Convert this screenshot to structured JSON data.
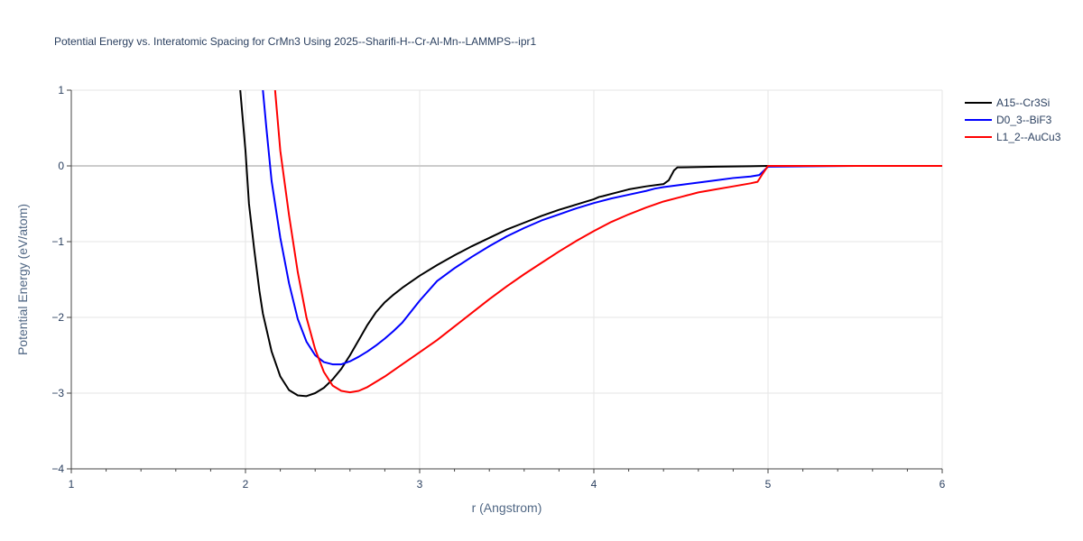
{
  "chart_data": {
    "type": "line",
    "title": "Potential Energy vs. Interatomic Spacing for CrMn3 Using 2025--Sharifi-H--Cr-Al-Mn--LAMMPS--ipr1",
    "xlabel": "r (Angstrom)",
    "ylabel": "Potential Energy (eV/atom)",
    "xlim": [
      1,
      6
    ],
    "ylim": [
      -4,
      1
    ],
    "xticks": [
      "1",
      "2",
      "3",
      "4",
      "5",
      "6"
    ],
    "yticks": [
      "1",
      "0",
      "−1",
      "−2",
      "−3",
      "−4"
    ],
    "grid": true,
    "legend_position": "top-right",
    "series": [
      {
        "name": "A15--Cr3Si",
        "color": "#000000",
        "x": [
          1.97,
          2.0,
          2.02,
          2.05,
          2.08,
          2.1,
          2.15,
          2.2,
          2.25,
          2.3,
          2.35,
          2.4,
          2.45,
          2.5,
          2.55,
          2.6,
          2.65,
          2.7,
          2.75,
          2.8,
          2.85,
          2.9,
          3.0,
          3.1,
          3.2,
          3.3,
          3.4,
          3.5,
          3.6,
          3.7,
          3.8,
          3.9,
          4.0,
          4.03,
          4.05,
          4.1,
          4.2,
          4.3,
          4.4,
          4.43,
          4.46,
          4.48,
          4.5,
          4.7,
          4.9,
          5.0,
          5.5,
          6.0
        ],
        "y": [
          1.0,
          0.2,
          -0.5,
          -1.1,
          -1.65,
          -1.95,
          -2.45,
          -2.78,
          -2.96,
          -3.03,
          -3.04,
          -3.0,
          -2.93,
          -2.82,
          -2.68,
          -2.5,
          -2.3,
          -2.1,
          -1.93,
          -1.8,
          -1.7,
          -1.61,
          -1.45,
          -1.31,
          -1.18,
          -1.06,
          -0.95,
          -0.84,
          -0.75,
          -0.66,
          -0.58,
          -0.51,
          -0.44,
          -0.41,
          -0.4,
          -0.37,
          -0.31,
          -0.27,
          -0.24,
          -0.19,
          -0.06,
          -0.02,
          -0.02,
          -0.01,
          -0.005,
          0.0,
          0.0,
          0.0
        ]
      },
      {
        "name": "D0_3--BiF3",
        "color": "#0000ff",
        "x": [
          2.1,
          2.12,
          2.15,
          2.2,
          2.25,
          2.3,
          2.35,
          2.4,
          2.45,
          2.5,
          2.55,
          2.6,
          2.65,
          2.7,
          2.75,
          2.8,
          2.85,
          2.9,
          3.0,
          3.1,
          3.2,
          3.3,
          3.4,
          3.5,
          3.6,
          3.7,
          3.8,
          3.9,
          4.0,
          4.1,
          4.2,
          4.3,
          4.35,
          4.4,
          4.5,
          4.6,
          4.7,
          4.8,
          4.9,
          4.95,
          5.0,
          5.5,
          6.0
        ],
        "y": [
          1.0,
          0.5,
          -0.2,
          -0.95,
          -1.55,
          -2.02,
          -2.32,
          -2.5,
          -2.59,
          -2.62,
          -2.62,
          -2.58,
          -2.52,
          -2.45,
          -2.37,
          -2.28,
          -2.18,
          -2.07,
          -1.78,
          -1.52,
          -1.35,
          -1.2,
          -1.06,
          -0.93,
          -0.82,
          -0.72,
          -0.64,
          -0.56,
          -0.49,
          -0.43,
          -0.38,
          -0.33,
          -0.3,
          -0.28,
          -0.25,
          -0.22,
          -0.19,
          -0.16,
          -0.14,
          -0.12,
          -0.01,
          0.0,
          0.0
        ]
      },
      {
        "name": "L1_2--AuCu3",
        "color": "#ff0000",
        "x": [
          2.17,
          2.2,
          2.25,
          2.3,
          2.35,
          2.4,
          2.45,
          2.5,
          2.55,
          2.6,
          2.65,
          2.7,
          2.8,
          2.9,
          3.0,
          3.1,
          3.2,
          3.3,
          3.4,
          3.5,
          3.6,
          3.7,
          3.8,
          3.9,
          4.0,
          4.1,
          4.2,
          4.3,
          4.4,
          4.5,
          4.6,
          4.7,
          4.8,
          4.9,
          4.94,
          4.97,
          5.0,
          5.5,
          6.0
        ],
        "y": [
          1.0,
          0.2,
          -0.65,
          -1.4,
          -2.0,
          -2.42,
          -2.72,
          -2.9,
          -2.97,
          -2.99,
          -2.97,
          -2.92,
          -2.78,
          -2.62,
          -2.46,
          -2.3,
          -2.12,
          -1.94,
          -1.76,
          -1.59,
          -1.43,
          -1.28,
          -1.13,
          -0.99,
          -0.86,
          -0.74,
          -0.64,
          -0.55,
          -0.47,
          -0.41,
          -0.35,
          -0.31,
          -0.27,
          -0.23,
          -0.21,
          -0.1,
          0.0,
          0.0,
          0.0
        ]
      }
    ]
  }
}
